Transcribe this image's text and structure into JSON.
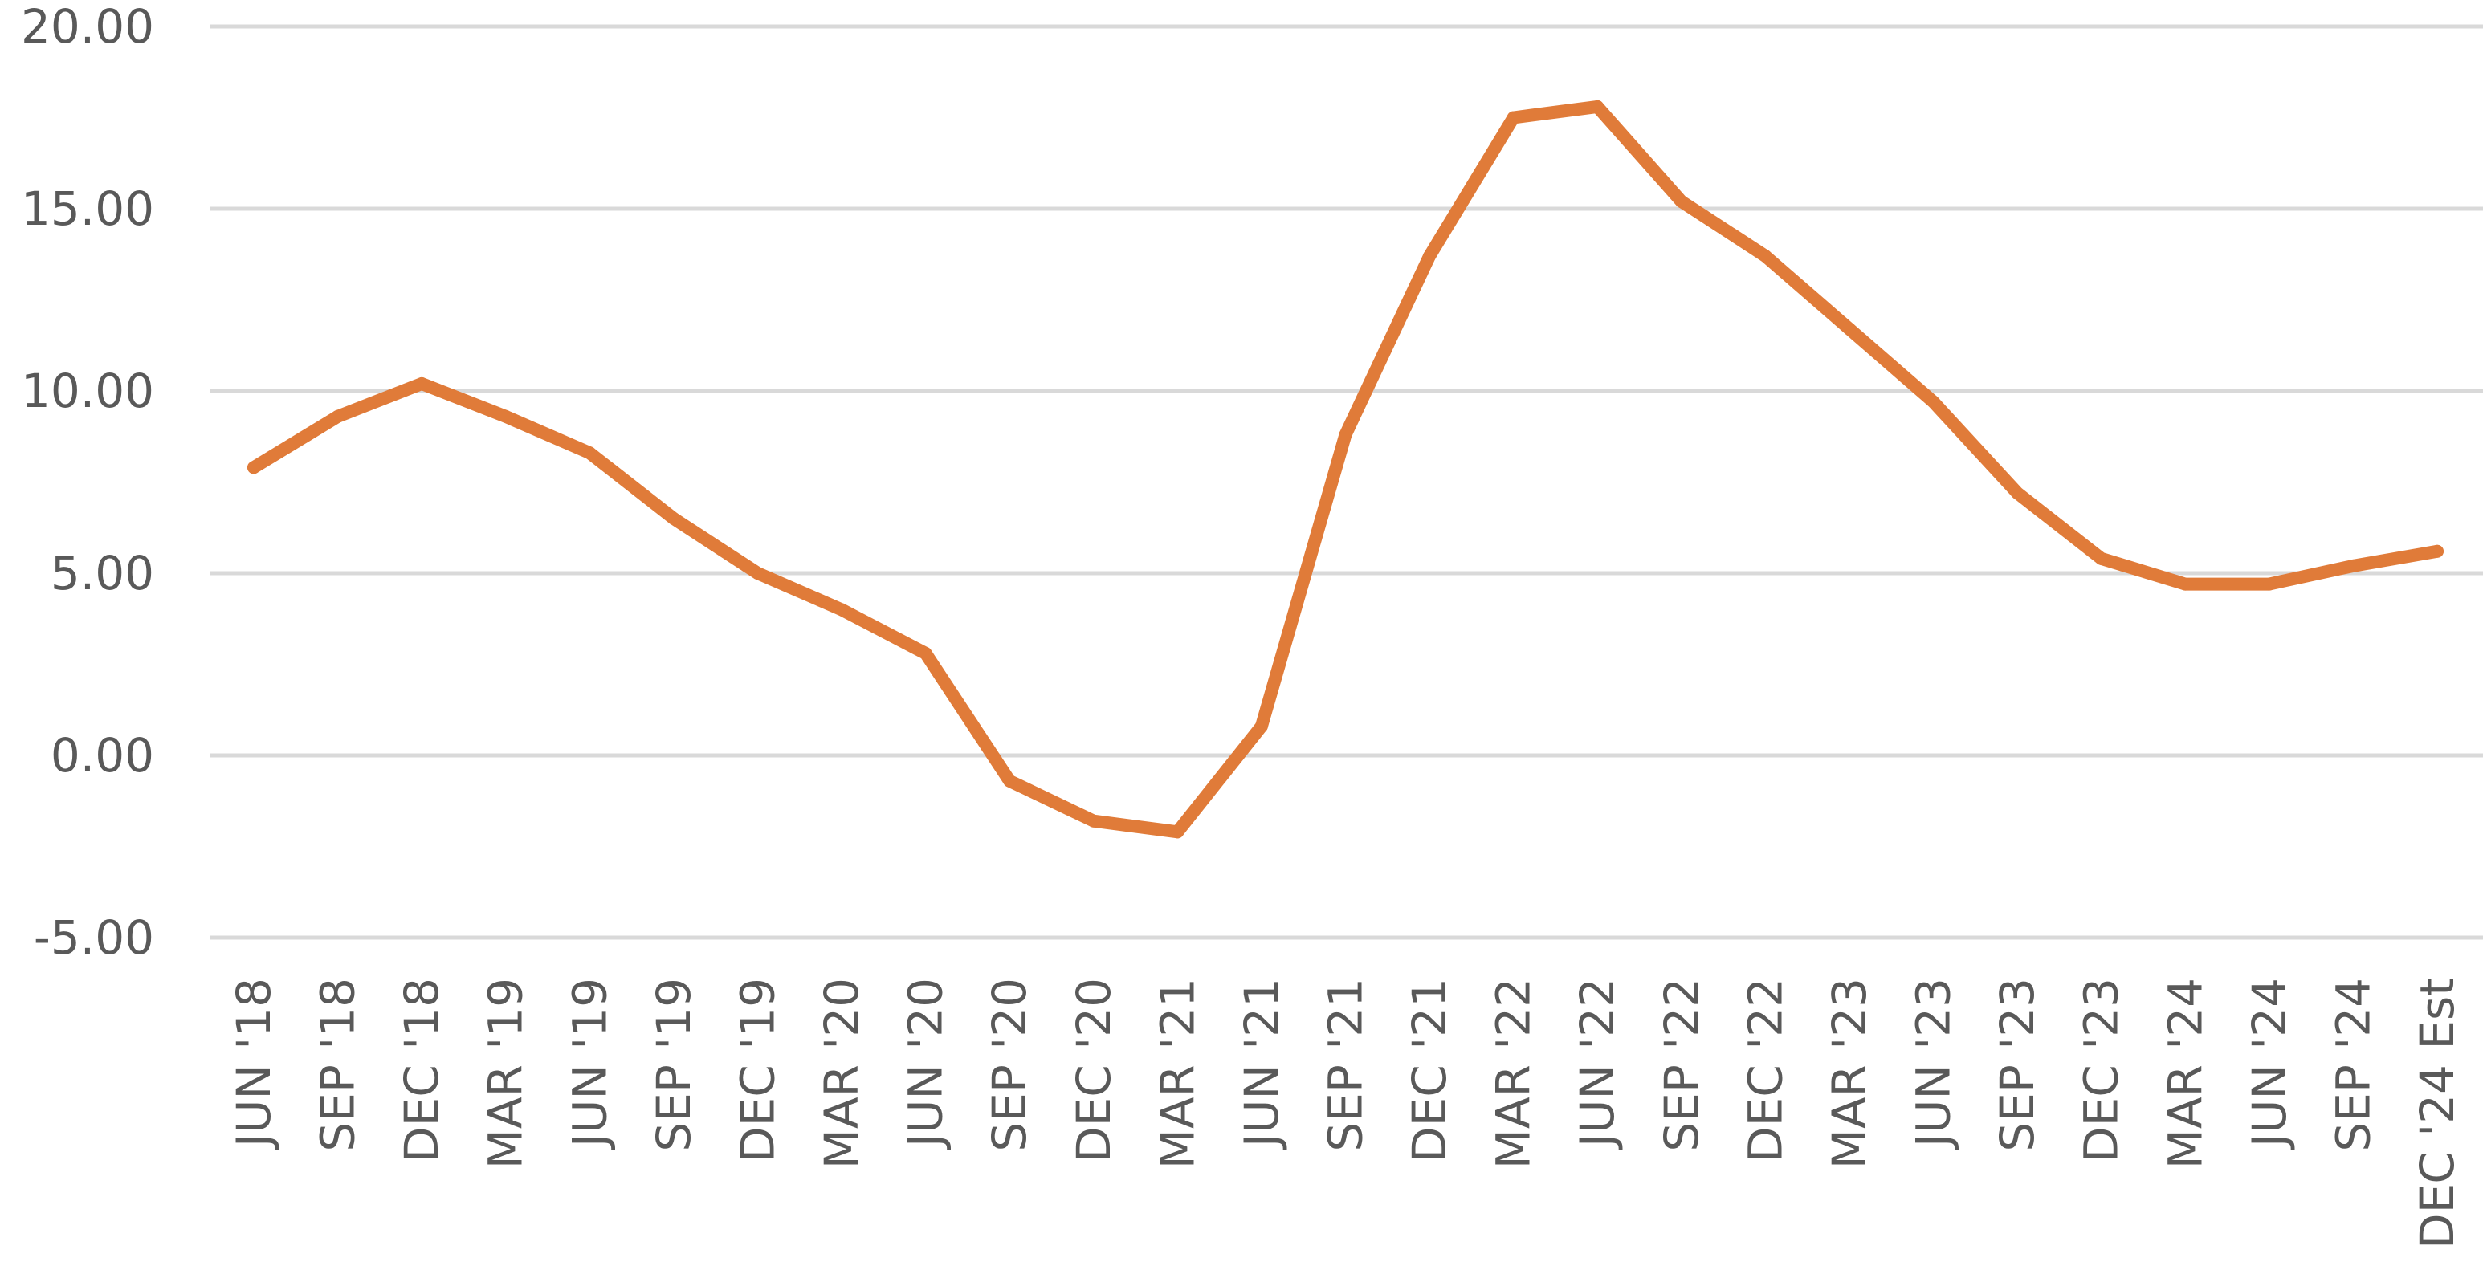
{
  "chart_data": {
    "type": "line",
    "title": "",
    "xlabel": "",
    "ylabel": "",
    "ylim": [
      -5,
      20
    ],
    "y_ticks": [
      "20.00",
      "15.00",
      "10.00",
      "5.00",
      "0.00",
      "-5.00"
    ],
    "y_tick_values": [
      20,
      15,
      10,
      5,
      0,
      -5
    ],
    "grid": true,
    "legend": "none",
    "categories": [
      "JUN '18",
      "SEP '18",
      "DEC '18",
      "MAR '19",
      "JUN '19",
      "SEP '19",
      "DEC '19",
      "MAR '20",
      "JUN '20",
      "SEP '20",
      "DEC '20",
      "MAR '21",
      "JUN '21",
      "SEP '21",
      "DEC '21",
      "MAR '22",
      "JUN '22",
      "SEP '22",
      "DEC '22",
      "MAR '23",
      "JUN '23",
      "SEP '23",
      "DEC '23",
      "MAR '24",
      "JUN '24",
      "SEP '24",
      "DEC '24 Est"
    ],
    "series": [
      {
        "color": "#e07b39",
        "values": [
          7.9,
          9.3,
          10.2,
          9.3,
          8.3,
          6.5,
          5.0,
          4.0,
          2.8,
          -0.7,
          -1.8,
          -2.1,
          0.8,
          8.8,
          13.7,
          17.5,
          17.8,
          15.2,
          13.7,
          11.7,
          9.7,
          7.2,
          5.4,
          4.7,
          4.7,
          5.2,
          5.6
        ]
      }
    ]
  }
}
